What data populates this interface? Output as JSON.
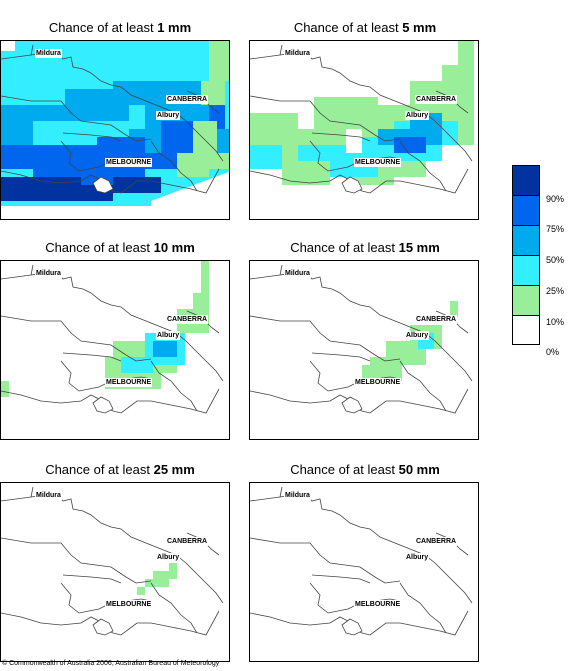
{
  "panels": [
    {
      "title_prefix": "Chance of at least ",
      "amount": "1 mm"
    },
    {
      "title_prefix": "Chance of at least ",
      "amount": "5 mm"
    },
    {
      "title_prefix": "Chance of at least ",
      "amount": "10 mm"
    },
    {
      "title_prefix": "Chance of at least ",
      "amount": "15 mm"
    },
    {
      "title_prefix": "Chance of at least ",
      "amount": "25 mm"
    },
    {
      "title_prefix": "Chance of at least ",
      "amount": "50 mm"
    }
  ],
  "places": {
    "mildura": "Mildura",
    "canberra": "CANBERRA",
    "albury": "Albury",
    "melbourne": "MELBOURNE"
  },
  "legend": {
    "labels": [
      "90%",
      "75%",
      "50%",
      "25%",
      "10%",
      "0%"
    ],
    "colors": [
      "#0033a0",
      "#0066ee",
      "#00aaee",
      "#33eeff",
      "#99ee99",
      "#ffffff"
    ]
  },
  "credit": "© Commonwealth of Australia 2006, Australian Bureau of Meteorology"
}
